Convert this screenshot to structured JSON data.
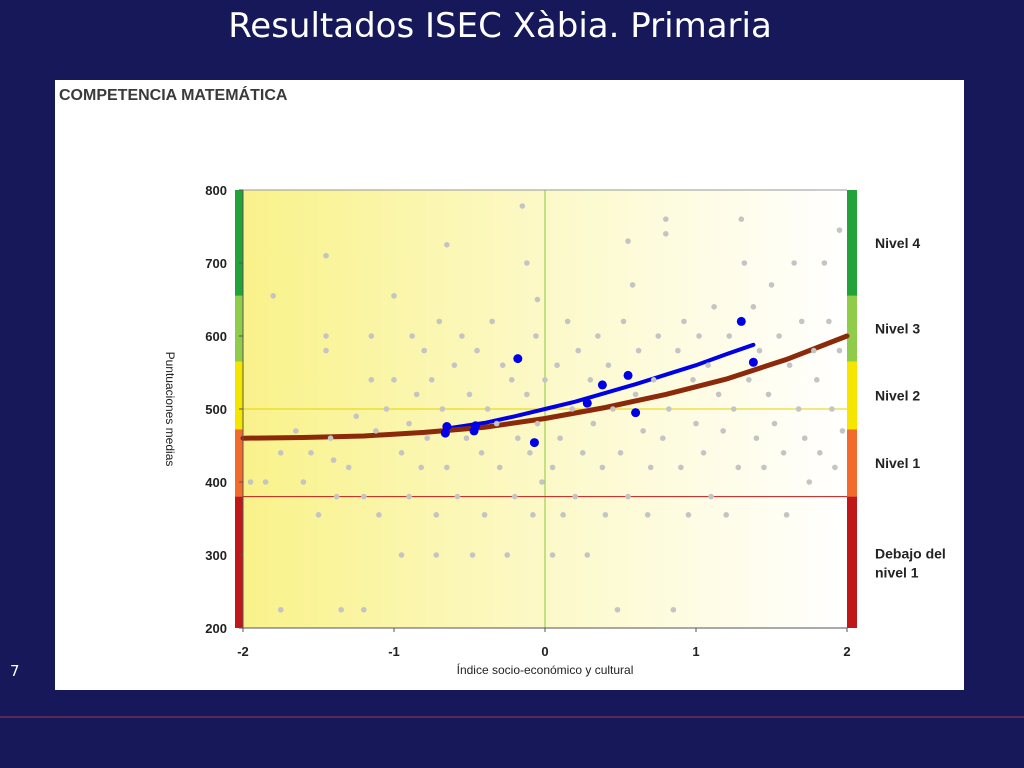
{
  "slide": {
    "title": "Resultados ISEC Xàbia. Primaria",
    "number": "7"
  },
  "colors": {
    "background": "#16185a",
    "school": "#0000e6",
    "reference": "#8b2a0a",
    "nivel_4": "#22a33a",
    "nivel_3": "#8fcc4a",
    "nivel_2": "#f5e600",
    "nivel_1": "#f26b2c",
    "debajo": "#c01818"
  },
  "chart_data": {
    "type": "scatter",
    "title": "COMPETENCIA MATEMÁTICA",
    "xlabel": "Índice socio-económico y cultural",
    "ylabel": "Puntuaciones medias",
    "xlim": [
      -2,
      2
    ],
    "ylim": [
      200,
      800
    ],
    "xticks": [
      -2,
      -1,
      0,
      1,
      2
    ],
    "yticks": [
      200,
      300,
      400,
      500,
      600,
      700,
      800
    ],
    "grid": false,
    "reference_lines": {
      "x": 0,
      "y_mean": 500,
      "y_threshold": 380
    },
    "levels": [
      {
        "name": "Nivel 4",
        "from": 655,
        "to": 800,
        "color": "#22a33a"
      },
      {
        "name": "Nivel 3",
        "from": 565,
        "to": 655,
        "color": "#8fcc4a"
      },
      {
        "name": "Nivel 2",
        "from": 472,
        "to": 565,
        "color": "#f5e600"
      },
      {
        "name": "Nivel 1",
        "from": 380,
        "to": 472,
        "color": "#f26b2c"
      },
      {
        "name": "Debajo del nivel 1",
        "lines": [
          "Debajo del",
          "nivel 1"
        ],
        "from": 200,
        "to": 380,
        "color": "#c01818"
      }
    ],
    "series": [
      {
        "kind": "scatter",
        "color": "#0000e6",
        "points": [
          [
            -0.66,
            467
          ],
          [
            -0.65,
            476
          ],
          [
            -0.47,
            470
          ],
          [
            -0.46,
            477
          ],
          [
            -0.18,
            569
          ],
          [
            -0.07,
            454
          ],
          [
            0.28,
            508
          ],
          [
            0.38,
            533
          ],
          [
            0.55,
            546
          ],
          [
            0.6,
            495
          ],
          [
            1.3,
            620
          ],
          [
            1.38,
            564
          ]
        ]
      },
      {
        "kind": "line",
        "color": "#0000e6",
        "points": [
          [
            -0.66,
            473
          ],
          [
            -0.4,
            481
          ],
          [
            -0.2,
            490
          ],
          [
            0.0,
            500
          ],
          [
            0.2,
            510
          ],
          [
            0.4,
            522
          ],
          [
            0.6,
            534
          ],
          [
            0.8,
            547
          ],
          [
            1.0,
            560
          ],
          [
            1.2,
            575
          ],
          [
            1.38,
            588
          ]
        ]
      },
      {
        "kind": "line",
        "color": "#8b2a0a",
        "points": [
          [
            -2.0,
            460
          ],
          [
            -1.6,
            461
          ],
          [
            -1.2,
            463
          ],
          [
            -0.8,
            468
          ],
          [
            -0.4,
            475
          ],
          [
            0.0,
            487
          ],
          [
            0.4,
            502
          ],
          [
            0.8,
            520
          ],
          [
            1.2,
            541
          ],
          [
            1.6,
            568
          ],
          [
            2.0,
            600
          ]
        ]
      },
      {
        "kind": "scatter",
        "color": "#c4c4c4",
        "points": [
          [
            -1.95,
            400
          ],
          [
            -1.85,
            400
          ],
          [
            -1.8,
            655
          ],
          [
            -1.75,
            440
          ],
          [
            -1.75,
            225
          ],
          [
            -1.65,
            470
          ],
          [
            -1.6,
            400
          ],
          [
            -1.55,
            440
          ],
          [
            -1.5,
            355
          ],
          [
            -1.45,
            710
          ],
          [
            -1.45,
            600
          ],
          [
            -1.45,
            580
          ],
          [
            -1.42,
            460
          ],
          [
            -1.4,
            430
          ],
          [
            -1.38,
            380
          ],
          [
            -1.35,
            225
          ],
          [
            -1.3,
            420
          ],
          [
            -1.25,
            490
          ],
          [
            -1.2,
            225
          ],
          [
            -1.2,
            380
          ],
          [
            -1.15,
            600
          ],
          [
            -1.15,
            540
          ],
          [
            -1.12,
            470
          ],
          [
            -1.1,
            355
          ],
          [
            -1.05,
            500
          ],
          [
            -1.0,
            540
          ],
          [
            -1.0,
            655
          ],
          [
            -0.95,
            440
          ],
          [
            -0.95,
            300
          ],
          [
            -0.9,
            380
          ],
          [
            -0.9,
            480
          ],
          [
            -0.88,
            600
          ],
          [
            -0.85,
            520
          ],
          [
            -0.82,
            420
          ],
          [
            -0.8,
            580
          ],
          [
            -0.78,
            460
          ],
          [
            -0.75,
            540
          ],
          [
            -0.72,
            355
          ],
          [
            -0.72,
            300
          ],
          [
            -0.7,
            620
          ],
          [
            -0.68,
            500
          ],
          [
            -0.65,
            725
          ],
          [
            -0.65,
            420
          ],
          [
            -0.6,
            560
          ],
          [
            -0.58,
            380
          ],
          [
            -0.55,
            600
          ],
          [
            -0.52,
            460
          ],
          [
            -0.5,
            520
          ],
          [
            -0.48,
            300
          ],
          [
            -0.45,
            580
          ],
          [
            -0.42,
            440
          ],
          [
            -0.4,
            355
          ],
          [
            -0.38,
            500
          ],
          [
            -0.35,
            620
          ],
          [
            -0.32,
            480
          ],
          [
            -0.3,
            420
          ],
          [
            -0.28,
            560
          ],
          [
            -0.25,
            300
          ],
          [
            -0.22,
            540
          ],
          [
            -0.2,
            380
          ],
          [
            -0.18,
            460
          ],
          [
            -0.15,
            778
          ],
          [
            -0.12,
            700
          ],
          [
            -0.12,
            520
          ],
          [
            -0.1,
            440
          ],
          [
            -0.08,
            355
          ],
          [
            -0.06,
            600
          ],
          [
            -0.05,
            650
          ],
          [
            -0.05,
            480
          ],
          [
            -0.02,
            400
          ],
          [
            0.0,
            540
          ],
          [
            0.05,
            420
          ],
          [
            0.05,
            300
          ],
          [
            0.08,
            560
          ],
          [
            0.1,
            460
          ],
          [
            0.12,
            355
          ],
          [
            0.15,
            620
          ],
          [
            0.18,
            500
          ],
          [
            0.2,
            380
          ],
          [
            0.22,
            580
          ],
          [
            0.25,
            440
          ],
          [
            0.28,
            300
          ],
          [
            0.3,
            540
          ],
          [
            0.32,
            480
          ],
          [
            0.35,
            600
          ],
          [
            0.38,
            420
          ],
          [
            0.4,
            355
          ],
          [
            0.42,
            560
          ],
          [
            0.45,
            500
          ],
          [
            0.48,
            225
          ],
          [
            0.5,
            440
          ],
          [
            0.52,
            620
          ],
          [
            0.55,
            730
          ],
          [
            0.55,
            380
          ],
          [
            0.58,
            670
          ],
          [
            0.6,
            520
          ],
          [
            0.62,
            580
          ],
          [
            0.65,
            470
          ],
          [
            0.68,
            355
          ],
          [
            0.7,
            420
          ],
          [
            0.72,
            540
          ],
          [
            0.75,
            600
          ],
          [
            0.78,
            460
          ],
          [
            0.8,
            760
          ],
          [
            0.8,
            740
          ],
          [
            0.82,
            500
          ],
          [
            0.85,
            225
          ],
          [
            0.88,
            580
          ],
          [
            0.9,
            420
          ],
          [
            0.92,
            620
          ],
          [
            0.95,
            355
          ],
          [
            0.98,
            540
          ],
          [
            1.0,
            480
          ],
          [
            1.02,
            600
          ],
          [
            1.05,
            440
          ],
          [
            1.08,
            560
          ],
          [
            1.1,
            380
          ],
          [
            1.12,
            640
          ],
          [
            1.15,
            520
          ],
          [
            1.18,
            470
          ],
          [
            1.2,
            355
          ],
          [
            1.22,
            600
          ],
          [
            1.25,
            500
          ],
          [
            1.28,
            420
          ],
          [
            1.3,
            760
          ],
          [
            1.32,
            700
          ],
          [
            1.35,
            540
          ],
          [
            1.38,
            640
          ],
          [
            1.4,
            460
          ],
          [
            1.42,
            580
          ],
          [
            1.45,
            420
          ],
          [
            1.48,
            520
          ],
          [
            1.5,
            670
          ],
          [
            1.52,
            480
          ],
          [
            1.55,
            600
          ],
          [
            1.58,
            440
          ],
          [
            1.6,
            355
          ],
          [
            1.62,
            560
          ],
          [
            1.65,
            700
          ],
          [
            1.68,
            500
          ],
          [
            1.7,
            620
          ],
          [
            1.72,
            460
          ],
          [
            1.75,
            400
          ],
          [
            1.78,
            580
          ],
          [
            1.8,
            540
          ],
          [
            1.82,
            440
          ],
          [
            1.85,
            700
          ],
          [
            1.88,
            620
          ],
          [
            1.9,
            500
          ],
          [
            1.92,
            420
          ],
          [
            1.95,
            745
          ],
          [
            1.95,
            580
          ],
          [
            1.97,
            470
          ]
        ]
      }
    ]
  }
}
